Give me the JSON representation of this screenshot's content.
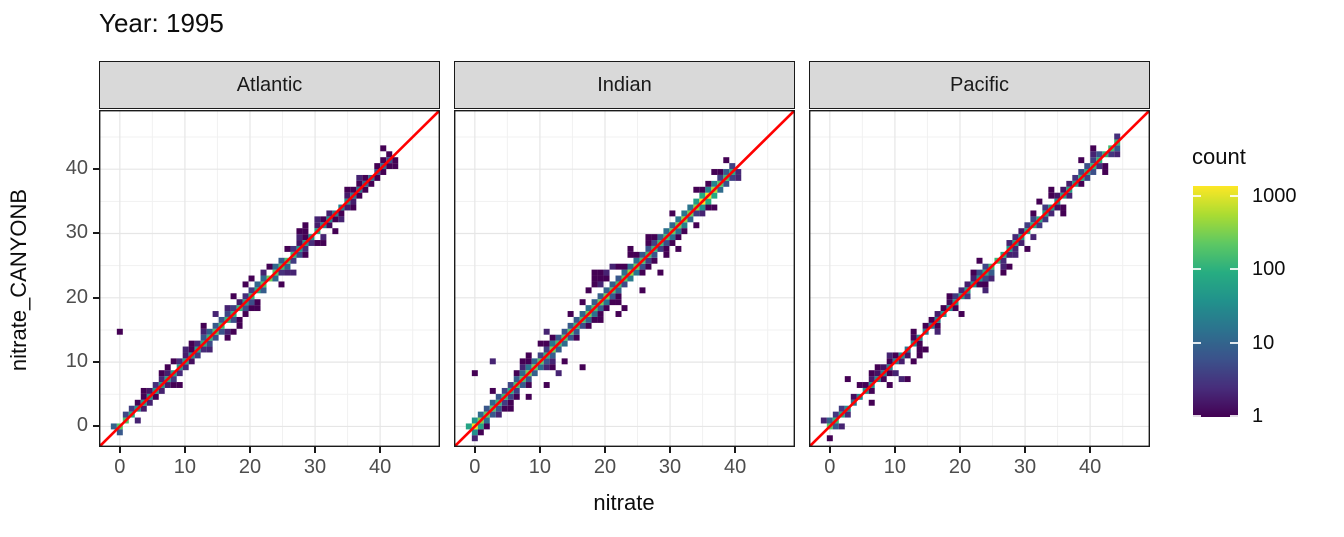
{
  "header": {
    "title": "Year: 1995"
  },
  "chart_data": {
    "type": "bin2d",
    "title": "Year: 1995",
    "xlabel": "nitrate",
    "ylabel": "nitrate_CANYONB",
    "x_ticks": [
      0,
      10,
      20,
      30,
      40
    ],
    "y_ticks": [
      0,
      10,
      20,
      30,
      40
    ],
    "minor_gridlines": [
      5,
      15,
      25,
      35,
      45
    ],
    "axis_domain": [
      -3.2,
      49.2
    ],
    "bin_width": 0.92,
    "abline": {
      "slope": 1,
      "intercept": 0,
      "color": "#FF0000"
    },
    "legend": {
      "title": "count",
      "scale": "log10",
      "tick_values": [
        1000,
        100,
        10,
        1
      ],
      "max_decades": 3.15,
      "viridis_stops": [
        "#440154",
        "#472D7B",
        "#3B528B",
        "#2C728E",
        "#21918C",
        "#27AD81",
        "#5DC863",
        "#AADC32",
        "#FDE725"
      ]
    },
    "seed": 1995,
    "facets": [
      {
        "label": "Atlantic",
        "data_max": 41.6,
        "spread": 1.0,
        "hot_spots": [
          [
            0,
            260
          ],
          [
            1,
            120
          ],
          [
            3,
            40
          ],
          [
            6,
            60
          ],
          [
            8,
            90
          ],
          [
            10,
            50
          ],
          [
            13,
            90
          ],
          [
            15.5,
            140
          ],
          [
            17,
            80
          ],
          [
            19,
            110
          ],
          [
            21,
            90
          ],
          [
            23.5,
            230
          ],
          [
            25.5,
            140
          ],
          [
            27,
            90
          ],
          [
            29,
            70
          ],
          [
            31,
            50
          ],
          [
            33,
            40
          ],
          [
            35,
            30
          ],
          [
            37,
            20
          ],
          [
            39,
            12
          ],
          [
            41.5,
            8
          ]
        ],
        "outliers": [
          [
            0.4,
            14.6
          ],
          [
            3.7,
            5.5
          ],
          [
            6.4,
            8.3
          ],
          [
            9.2,
            6.7
          ],
          [
            11.0,
            12.9
          ],
          [
            12.9,
            15.4
          ],
          [
            14.7,
            17.2
          ],
          [
            16.5,
            13.7
          ],
          [
            18.4,
            15.6
          ],
          [
            20.3,
            23.1
          ],
          [
            21.3,
            18.9
          ],
          [
            24.8,
            22.0
          ],
          [
            26.6,
            24.0
          ],
          [
            28.6,
            31.2
          ],
          [
            31.2,
            28.5
          ],
          [
            33.0,
            30.3
          ]
        ]
      },
      {
        "label": "Indian",
        "data_max": 39.6,
        "spread": 1.6,
        "hot_spots": [
          [
            0,
            800
          ],
          [
            1.5,
            200
          ],
          [
            4,
            90
          ],
          [
            6,
            200
          ],
          [
            8,
            280
          ],
          [
            10,
            160
          ],
          [
            12,
            220
          ],
          [
            14,
            200
          ],
          [
            16,
            160
          ],
          [
            18,
            220
          ],
          [
            20,
            260
          ],
          [
            22,
            160
          ],
          [
            24.8,
            400
          ],
          [
            26,
            180
          ],
          [
            28,
            150
          ],
          [
            30,
            200
          ],
          [
            32,
            300
          ],
          [
            33.5,
            550
          ],
          [
            35.3,
            1300
          ],
          [
            36.5,
            600
          ],
          [
            38,
            300
          ],
          [
            39.5,
            120
          ]
        ],
        "outliers": [
          [
            0.3,
            8.6
          ],
          [
            2.8,
            10.1
          ],
          [
            5.5,
            2.8
          ],
          [
            7.4,
            10.1
          ],
          [
            8.3,
            4.6
          ],
          [
            11.0,
            6.4
          ],
          [
            11.0,
            14.7
          ],
          [
            12.9,
            8.3
          ],
          [
            13.8,
            10.3
          ],
          [
            14.7,
            17.5
          ],
          [
            16.5,
            9.2
          ],
          [
            16.5,
            19.5
          ],
          [
            17.5,
            21.5
          ],
          [
            18.4,
            22.2
          ],
          [
            18.4,
            23.1
          ],
          [
            18.4,
            24.0
          ],
          [
            19.3,
            22.2
          ],
          [
            19.3,
            23.1
          ],
          [
            19.3,
            24.0
          ],
          [
            20.2,
            23.1
          ],
          [
            20.2,
            24.0
          ],
          [
            21.1,
            25.0
          ],
          [
            22.1,
            17.5
          ],
          [
            23.0,
            18.3
          ],
          [
            24.0,
            27.5
          ],
          [
            25.8,
            21.2
          ],
          [
            26.6,
            29.5
          ],
          [
            28.5,
            24.0
          ],
          [
            30.3,
            33.0
          ],
          [
            31.2,
            27.6
          ],
          [
            34.0,
            31.1
          ],
          [
            36.8,
            33.9
          ]
        ]
      },
      {
        "label": "Pacific",
        "data_max": 44.7,
        "spread": 0.75,
        "hot_spots": [
          [
            0,
            230
          ],
          [
            1.5,
            60
          ],
          [
            4,
            25
          ],
          [
            7,
            40
          ],
          [
            10,
            30
          ],
          [
            13,
            25
          ],
          [
            16,
            28
          ],
          [
            19,
            35
          ],
          [
            22,
            45
          ],
          [
            25.5,
            110
          ],
          [
            28,
            50
          ],
          [
            31,
            60
          ],
          [
            33,
            100
          ],
          [
            35,
            60
          ],
          [
            38,
            70
          ],
          [
            40,
            80
          ],
          [
            42,
            90
          ],
          [
            44.3,
            140
          ]
        ],
        "outliers": [
          [
            2.6,
            7.4
          ],
          [
            6.0,
            4.0
          ],
          [
            8.8,
            8.4
          ],
          [
            10.9,
            7.6
          ],
          [
            12.3,
            7.4
          ],
          [
            13.1,
            9.7
          ],
          [
            14.9,
            11.9
          ],
          [
            17.0,
            14.5
          ],
          [
            20.6,
            17.8
          ],
          [
            23.9,
            20.8
          ],
          [
            27.5,
            24.8
          ],
          [
            30.0,
            27.2
          ],
          [
            36.0,
            33.1
          ]
        ]
      }
    ]
  },
  "colors": {
    "background": "#FFFFFF",
    "strip_fill": "#D9D9D9",
    "strip_border": "#1A1A1A",
    "panel_border": "#1A1A1A",
    "grid_major": "#E6E6E6",
    "grid_minor": "#F1F1F1",
    "tick_mark": "#1A1A1A",
    "tick_label": "#4D4D4D",
    "abline": "#FF0000"
  }
}
